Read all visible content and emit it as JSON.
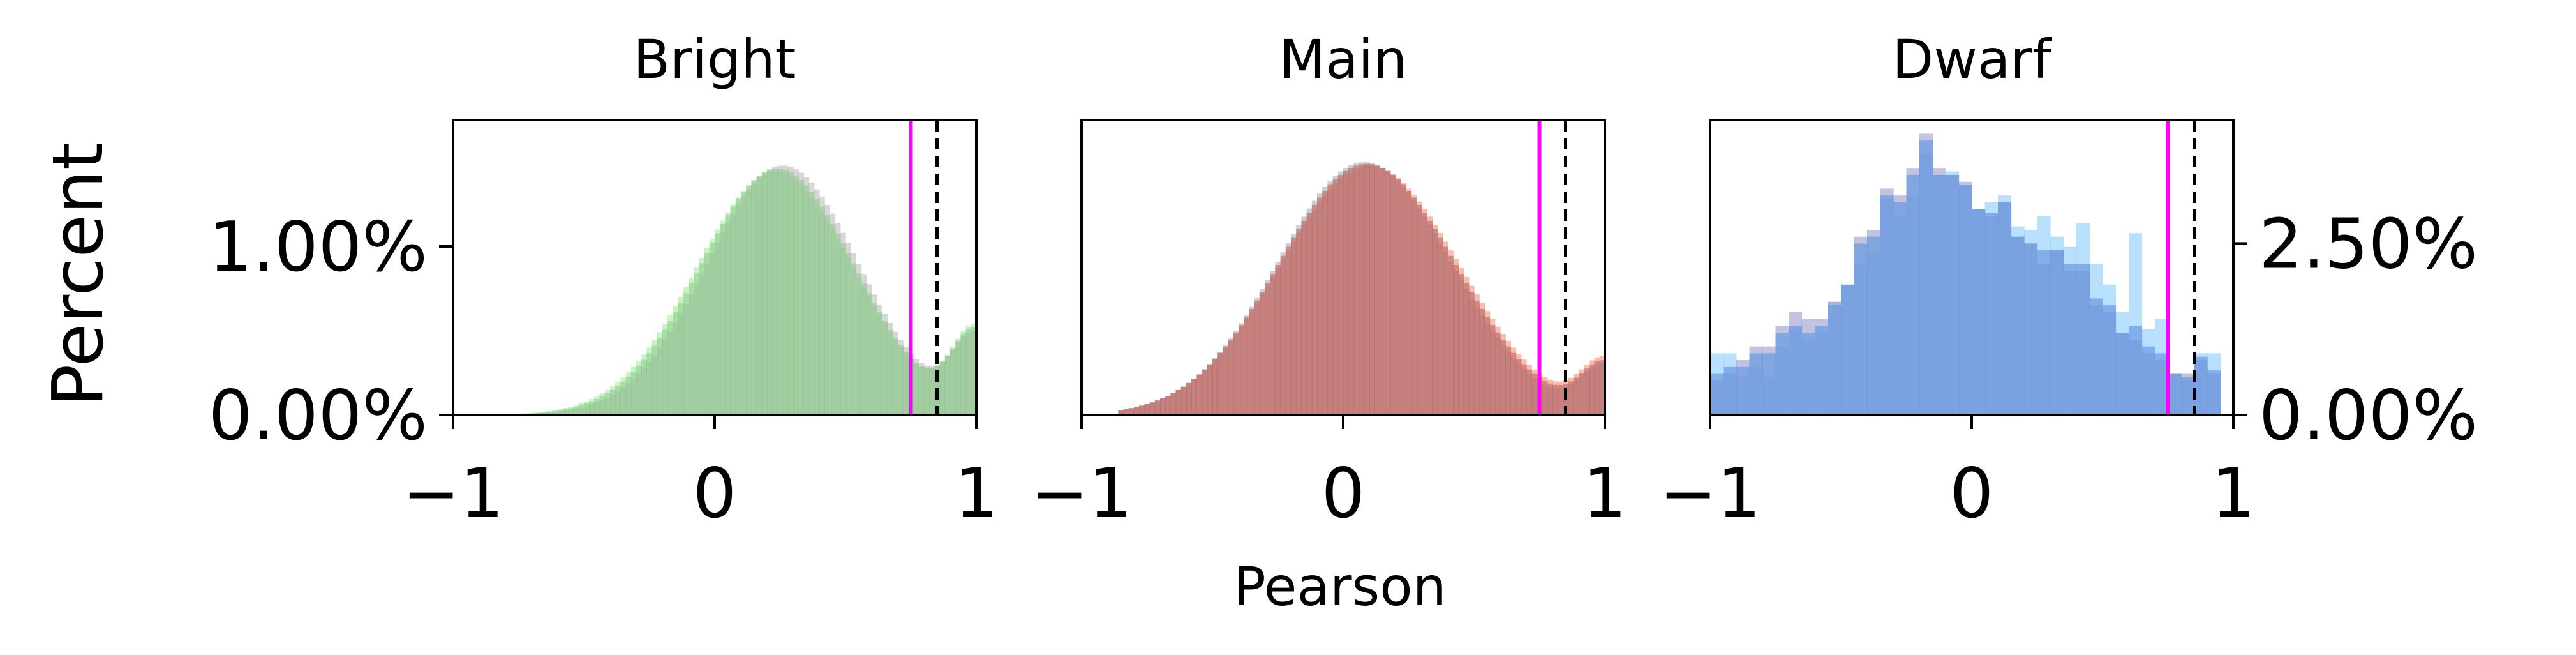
{
  "figure": {
    "ylabel": "Percent",
    "xlabel": "Pearson"
  },
  "chart_data": [
    {
      "type": "bar",
      "title": "Bright",
      "xlim": [
        -1,
        1
      ],
      "ylim": [
        0,
        1.75
      ],
      "xticks": [
        "−1",
        "0",
        "1"
      ],
      "yticks": [
        {
          "value": 0,
          "label": "0.00%"
        },
        {
          "value": 1.0,
          "label": "1.00%"
        }
      ],
      "ytick_side": "left",
      "bins": 100,
      "series": [
        {
          "color": "#98ec8c",
          "opacity": 0.55,
          "sigma": 0.3,
          "peak": 1.44,
          "tail": 0.88,
          "mu": 0.23
        },
        {
          "color": "#b0b0b0",
          "opacity": 0.5,
          "sigma": 0.29,
          "peak": 1.48,
          "tail": 0.8,
          "mu": 0.26
        },
        {
          "color": "#8cc88c",
          "opacity": 0.55,
          "sigma": 0.295,
          "peak": 1.46,
          "tail": 0.85,
          "mu": 0.24
        }
      ],
      "vlines": [
        {
          "x": 0.75,
          "color": "#ff00ff",
          "style": "solid"
        },
        {
          "x": 0.85,
          "color": "#000000",
          "style": "dashed"
        }
      ]
    },
    {
      "type": "bar",
      "title": "Main",
      "xlim": [
        -1,
        1
      ],
      "ylim": [
        0,
        1.75
      ],
      "xticks": [
        "−1",
        "0",
        "1"
      ],
      "yticks": [],
      "ytick_side": "none",
      "bins": 100,
      "series": [
        {
          "color": "#f08870",
          "opacity": 0.55,
          "sigma": 0.34,
          "peak": 1.48,
          "tail": 0.55,
          "mu": 0.1
        },
        {
          "color": "#a0a0a0",
          "opacity": 0.5,
          "sigma": 0.33,
          "peak": 1.5,
          "tail": 0.5,
          "mu": 0.08
        },
        {
          "color": "#c06060",
          "opacity": 0.6,
          "sigma": 0.335,
          "peak": 1.49,
          "tail": 0.52,
          "mu": 0.09
        }
      ],
      "vlines": [
        {
          "x": 0.75,
          "color": "#ff00ff",
          "style": "solid"
        },
        {
          "x": 0.85,
          "color": "#000000",
          "style": "dashed"
        }
      ]
    },
    {
      "type": "bar",
      "title": "Dwarf",
      "xlim": [
        -1,
        1
      ],
      "ylim": [
        0,
        4.3
      ],
      "xticks": [
        "−1",
        "0",
        "1"
      ],
      "yticks": [
        {
          "value": 0,
          "label": "0.00%"
        },
        {
          "value": 2.5,
          "label": "2.50%"
        }
      ],
      "ytick_side": "right",
      "bins": 40,
      "series": [
        {
          "color": "#80c8ff",
          "opacity": 0.55,
          "values": [
            0.9,
            0.9,
            0.55,
            0.7,
            0.55,
            1.0,
            1.25,
            1.1,
            1.2,
            1.65,
            1.9,
            2.2,
            2.35,
            3.15,
            2.9,
            3.2,
            3.8,
            3.5,
            3.55,
            3.35,
            3.0,
            3.1,
            3.2,
            2.75,
            2.7,
            2.9,
            2.6,
            2.45,
            2.8,
            2.2,
            1.9,
            1.5,
            2.65,
            1.25,
            1.4,
            0.6,
            0.5,
            0.9,
            0.9,
            0.0
          ]
        },
        {
          "color": "#9090c8",
          "opacity": 0.55,
          "values": [
            0.5,
            0.6,
            0.8,
            1.0,
            1.0,
            1.3,
            1.5,
            1.4,
            1.4,
            1.65,
            1.9,
            2.6,
            2.7,
            3.3,
            3.2,
            3.6,
            4.1,
            3.6,
            3.5,
            3.4,
            3.0,
            2.9,
            3.1,
            2.6,
            2.5,
            2.2,
            2.4,
            2.1,
            2.1,
            1.6,
            1.5,
            1.2,
            1.1,
            0.9,
            0.8,
            0.6,
            0.6,
            0.8,
            0.6,
            0.0
          ]
        },
        {
          "color": "#6a9ae0",
          "opacity": 0.7,
          "values": [
            0.6,
            0.7,
            0.7,
            0.9,
            0.9,
            1.2,
            1.3,
            1.2,
            1.3,
            1.6,
            1.9,
            2.5,
            2.6,
            3.2,
            3.1,
            3.5,
            4.0,
            3.5,
            3.5,
            3.35,
            3.0,
            2.95,
            3.1,
            2.6,
            2.5,
            2.4,
            2.4,
            2.2,
            2.2,
            1.7,
            1.6,
            1.2,
            1.3,
            1.0,
            0.9,
            0.6,
            0.55,
            0.85,
            0.65,
            0.0
          ]
        }
      ],
      "vlines": [
        {
          "x": 0.75,
          "color": "#ff00ff",
          "style": "solid"
        },
        {
          "x": 0.85,
          "color": "#000000",
          "style": "dashed"
        }
      ]
    }
  ]
}
